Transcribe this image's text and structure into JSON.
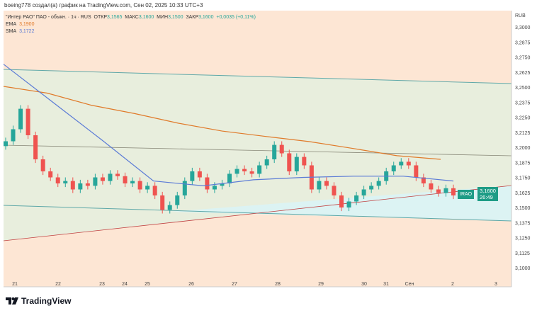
{
  "header": "boeing778 создал(а) график на TradingView.com, Сен 02, 2025 10:33 UTC+3",
  "legend": {
    "symbol": "\"Интер РАО\" ПАО - обыкн. · 1ч · RUS",
    "open_label": "ОТКР",
    "open": "3,1565",
    "high_label": "МАКС",
    "high": "3,1600",
    "low_label": "МИН",
    "low": "3,1500",
    "close_label": "ЗАКР",
    "close": "3,1600",
    "change": "+0,0035 (+0,11%)",
    "ema_label": "EMA",
    "ema": "3,1900",
    "sma_label": "SMA",
    "sma": "3,1722"
  },
  "price_tag": {
    "ticker": "IRAO",
    "price": "3,1600",
    "countdown": "26:49"
  },
  "brand": "TradingView",
  "colors": {
    "up": "#26a69a",
    "down": "#ef5350",
    "ema": "#e07a2a",
    "sma": "#5b7bd6"
  },
  "chart_data": {
    "type": "candlestick",
    "currency": "RUB",
    "y_ticks": [
      "3,3000",
      "3,2875",
      "3,2750",
      "3,2625",
      "3,2500",
      "3,2375",
      "3,2250",
      "3,2125",
      "3,2000",
      "3,1875",
      "3,1750",
      "3,1625",
      "3,1500",
      "3,1375",
      "3,1250",
      "3,1125",
      "3,1000"
    ],
    "x_ticks": [
      "21",
      "22",
      "23",
      "24",
      "25",
      "26",
      "27",
      "28",
      "29",
      "30",
      "31",
      "Сен",
      "2",
      "3"
    ],
    "closes": [
      3.205,
      3.215,
      3.232,
      3.21,
      3.19,
      3.18,
      3.175,
      3.17,
      3.172,
      3.165,
      3.17,
      3.168,
      3.175,
      3.172,
      3.178,
      3.176,
      3.17,
      3.172,
      3.165,
      3.168,
      3.16,
      3.148,
      3.152,
      3.16,
      3.172,
      3.18,
      3.175,
      3.165,
      3.168,
      3.17,
      3.178,
      3.182,
      3.18,
      3.178,
      3.185,
      3.19,
      3.202,
      3.195,
      3.18,
      3.192,
      3.185,
      3.165,
      3.172,
      3.168,
      3.16,
      3.15,
      3.155,
      3.16,
      3.165,
      3.168,
      3.172,
      3.18,
      3.185,
      3.188,
      3.185,
      3.175,
      3.17,
      3.165,
      3.162,
      3.166,
      3.16
    ],
    "ema": [
      3.2506,
      3.245,
      3.235,
      3.228,
      3.22,
      3.2135,
      3.209,
      3.2047,
      3.199,
      3.193,
      3.19
    ],
    "sma": [
      3.269,
      3.237,
      3.205,
      3.172,
      3.168,
      3.173,
      3.175,
      3.176,
      3.176,
      3.172
    ]
  }
}
